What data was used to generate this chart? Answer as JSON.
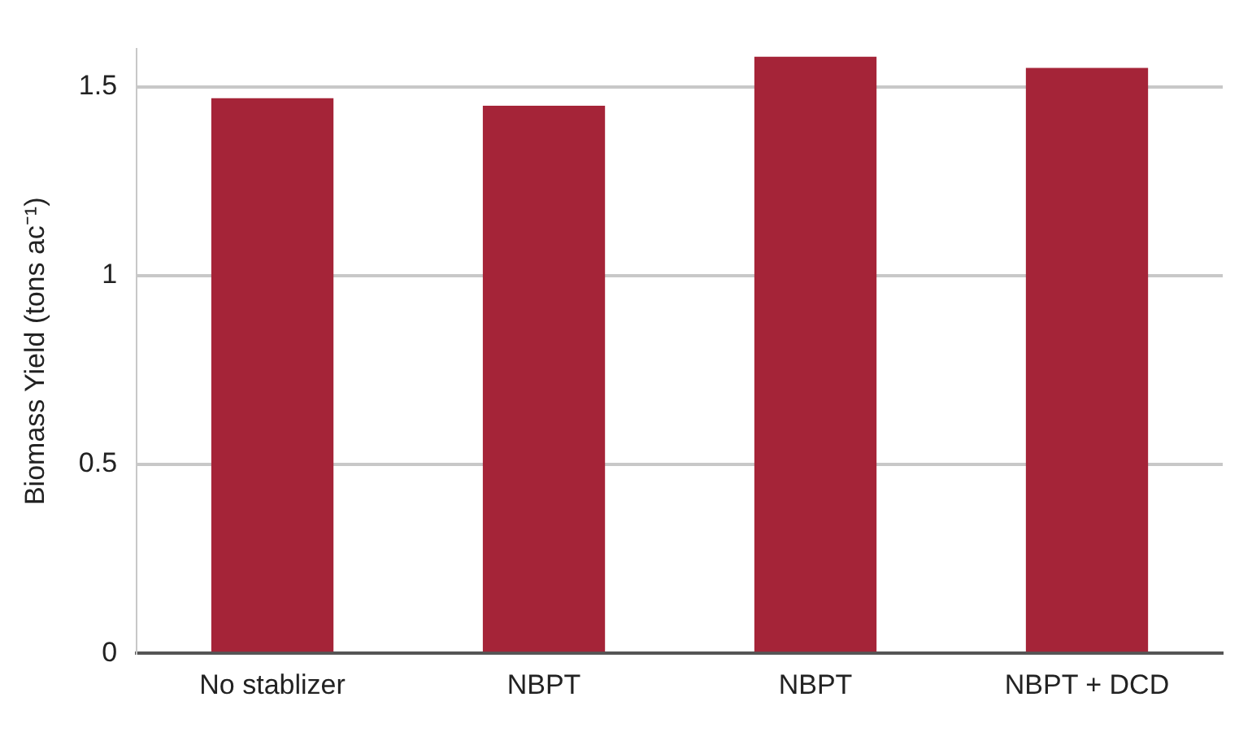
{
  "chart_data": {
    "type": "bar",
    "ylabel": "Biomass Yield (tons ac⁻¹)",
    "categories": [
      "No stablizer",
      "NBPT",
      "NBPT",
      "NBPT + DCD"
    ],
    "values": [
      1.47,
      1.45,
      1.58,
      1.55
    ],
    "color": "#a52438",
    "ylim": [
      0,
      1.6
    ],
    "yticks": [
      0,
      0.5,
      1,
      1.5
    ],
    "grid": "y",
    "legend": false
  }
}
